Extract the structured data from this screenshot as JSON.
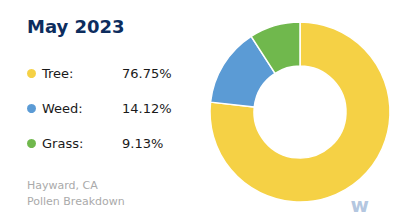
{
  "chart_data": {
    "type": "pie",
    "title": "May 2023",
    "subtitle": "Hayward, CA\nPollen Breakdown",
    "annotations": [
      "w"
    ],
    "categories": [
      "Tree:",
      "Weed:",
      "Grass:"
    ],
    "values": [
      76.75,
      14.12,
      9.13
    ],
    "value_labels": [
      "76.75%",
      "14.12%",
      "9.13%"
    ],
    "colors": [
      "#f5d145",
      "#5b9bd5",
      "#70b84d"
    ],
    "legend": "left"
  }
}
